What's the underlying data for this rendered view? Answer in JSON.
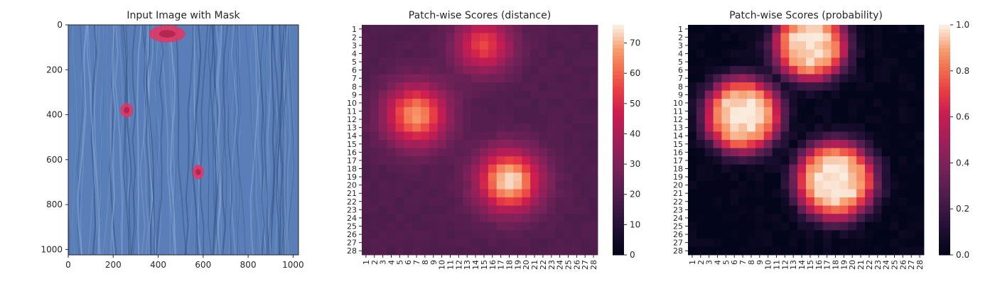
{
  "chart_data": [
    {
      "type": "image",
      "title": "Input Image with Mask",
      "xlim": [
        0,
        1024
      ],
      "ylim": [
        1024,
        0
      ],
      "xticks": [
        0,
        200,
        400,
        600,
        800,
        1000
      ],
      "yticks": [
        0,
        200,
        400,
        600,
        800,
        1000
      ],
      "background_color": "#5a7fb8",
      "mask_color": "#e8325f",
      "masks": [
        {
          "cx": 440,
          "cy": 40,
          "rx": 80,
          "ry": 38
        },
        {
          "cx": 260,
          "cy": 380,
          "rx": 28,
          "ry": 32
        },
        {
          "cx": 578,
          "cy": 655,
          "rx": 25,
          "ry": 32
        }
      ]
    },
    {
      "type": "heatmap",
      "title": "Patch-wise Scores (distance)",
      "xticklabels": [
        "1",
        "2",
        "3",
        "4",
        "5",
        "6",
        "7",
        "8",
        "9",
        "10",
        "11",
        "12",
        "13",
        "14",
        "15",
        "16",
        "17",
        "18",
        "19",
        "20",
        "21",
        "22",
        "23",
        "24",
        "25",
        "26",
        "27",
        "28"
      ],
      "yticklabels": [
        "1",
        "2",
        "3",
        "4",
        "5",
        "6",
        "7",
        "8",
        "9",
        "10",
        "11",
        "12",
        "13",
        "14",
        "15",
        "16",
        "17",
        "18",
        "19",
        "20",
        "21",
        "22",
        "23",
        "24",
        "25",
        "26",
        "27",
        "28"
      ],
      "colorbar": {
        "min": 0,
        "max": 76,
        "ticks": [
          0,
          10,
          20,
          30,
          40,
          50,
          60,
          70
        ]
      },
      "colormap": "rocket",
      "baseline": 20,
      "hotspots": [
        {
          "row": 3,
          "col": 15,
          "peak": 55,
          "sigma": 2.4
        },
        {
          "row": 11.5,
          "col": 7,
          "peak": 68,
          "sigma": 2.6
        },
        {
          "row": 19.5,
          "col": 18,
          "peak": 76,
          "sigma": 2.6
        }
      ]
    },
    {
      "type": "heatmap",
      "title": "Patch-wise Scores (probability)",
      "xticklabels": [
        "1",
        "2",
        "3",
        "4",
        "5",
        "6",
        "7",
        "8",
        "9",
        "10",
        "11",
        "12",
        "13",
        "14",
        "15",
        "16",
        "17",
        "18",
        "19",
        "20",
        "21",
        "22",
        "23",
        "24",
        "25",
        "26",
        "27",
        "28"
      ],
      "yticklabels": [
        "1",
        "2",
        "3",
        "4",
        "5",
        "6",
        "7",
        "8",
        "9",
        "10",
        "11",
        "12",
        "13",
        "14",
        "15",
        "16",
        "17",
        "18",
        "19",
        "20",
        "21",
        "22",
        "23",
        "24",
        "25",
        "26",
        "27",
        "28"
      ],
      "colorbar": {
        "min": 0.0,
        "max": 1.0,
        "ticks": [
          0.0,
          0.2,
          0.4,
          0.6,
          0.8,
          1.0
        ],
        "tick_labels": [
          "0.0",
          "0.2",
          "0.4",
          "0.6",
          "0.8",
          "1.0"
        ]
      },
      "colormap": "rocket",
      "hotspots": [
        {
          "row": 3,
          "col": 15,
          "radius": 4.2
        },
        {
          "row": 11.5,
          "col": 7,
          "radius": 4.4
        },
        {
          "row": 19.5,
          "col": 18,
          "radius": 4.6
        }
      ]
    }
  ]
}
